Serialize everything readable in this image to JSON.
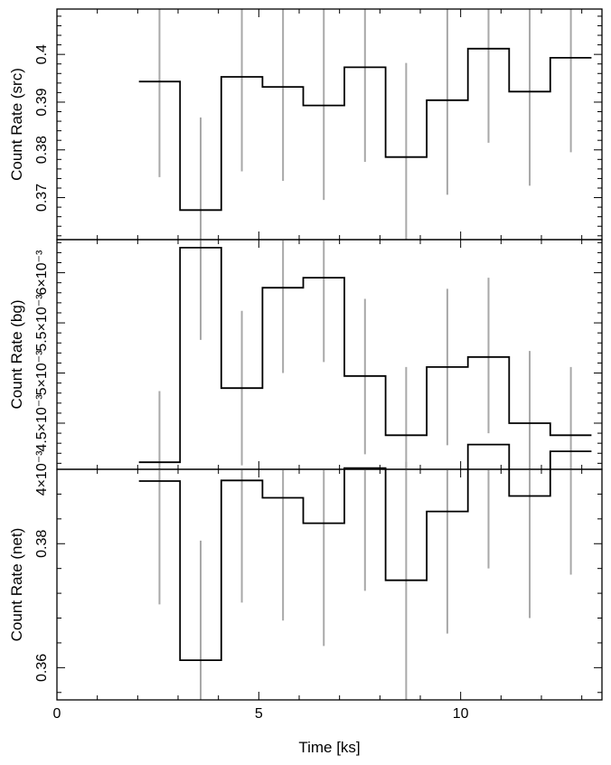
{
  "chart_data": [
    {
      "type": "line",
      "panel": "src",
      "ylabel": "Count Rate (src)",
      "ylim": [
        0.3612,
        0.4095
      ],
      "yticks_major": [
        0.37,
        0.38,
        0.39,
        0.4
      ],
      "ytick_labels": [
        "0.37",
        "0.38",
        "0.39",
        "0.4"
      ],
      "x_bin_edges": [
        2.03,
        3.05,
        4.07,
        5.09,
        6.1,
        7.12,
        8.14,
        9.16,
        10.18,
        11.2,
        12.22,
        13.24
      ],
      "x_centers": [
        2.54,
        3.56,
        4.58,
        5.6,
        6.61,
        7.63,
        8.65,
        9.67,
        10.69,
        11.71,
        12.73
      ],
      "values": [
        0.3943,
        0.3674,
        0.3953,
        0.3932,
        0.3893,
        0.3973,
        0.3785,
        0.3904,
        0.4012,
        0.3922,
        0.3993
      ],
      "err_low": [
        0.3743,
        0.3487,
        0.3755,
        0.3735,
        0.3695,
        0.3775,
        0.3612,
        0.3706,
        0.3815,
        0.3725,
        0.3795
      ],
      "err_high": [
        0.4095,
        0.3868,
        0.4095,
        0.4095,
        0.4095,
        0.4095,
        0.3982,
        0.4095,
        0.4095,
        0.4095,
        0.4095
      ]
    },
    {
      "type": "line",
      "panel": "bg",
      "ylabel": "Count Rate (bg)",
      "ylim": [
        4.04,
        6.33
      ],
      "yticks_major": [
        4.0,
        4.5,
        5.0,
        5.5,
        6.0
      ],
      "ytick_labels": [
        "4×10⁻³",
        "4.5×10⁻³",
        "5×10⁻³",
        "5.5×10⁻³",
        "6×10⁻³"
      ],
      "y_unit_multiplier": "×10⁻³",
      "x_bin_edges": [
        2.03,
        3.05,
        4.07,
        5.09,
        6.1,
        7.12,
        8.14,
        9.16,
        10.18,
        11.2,
        12.22,
        13.24
      ],
      "x_centers": [
        2.54,
        3.56,
        4.58,
        5.6,
        6.61,
        7.63,
        8.65,
        9.67,
        10.69,
        11.71,
        12.73
      ],
      "values": [
        4.11,
        6.25,
        4.85,
        5.85,
        5.95,
        4.97,
        4.38,
        5.06,
        5.16,
        4.5,
        4.38
      ],
      "err_low": [
        4.04,
        5.33,
        4.08,
        5.0,
        5.11,
        4.19,
        4.04,
        4.28,
        4.4,
        4.04,
        4.04
      ],
      "err_high": [
        4.82,
        6.33,
        5.62,
        6.33,
        6.33,
        5.74,
        5.06,
        5.84,
        5.95,
        5.22,
        5.06
      ]
    },
    {
      "type": "line",
      "panel": "net",
      "ylabel": "Count Rate (net)",
      "xlabel": "Time [ks]",
      "ylim": [
        0.3548,
        0.392
      ],
      "yticks_major": [
        0.36,
        0.38
      ],
      "ytick_labels": [
        "0.36",
        "0.38"
      ],
      "xlim": [
        0,
        13.5
      ],
      "xticks_major": [
        0,
        5,
        10
      ],
      "xtick_labels": [
        "0",
        "5",
        "10"
      ],
      "x_bin_edges": [
        2.03,
        3.05,
        4.07,
        5.09,
        6.1,
        7.12,
        8.14,
        9.16,
        10.18,
        11.2,
        12.22,
        13.24
      ],
      "x_centers": [
        2.54,
        3.56,
        4.58,
        5.6,
        6.61,
        7.63,
        8.65,
        9.67,
        10.69,
        11.71,
        12.73
      ],
      "values": [
        0.3901,
        0.3612,
        0.3902,
        0.3874,
        0.3833,
        0.3922,
        0.3741,
        0.3852,
        0.396,
        0.3877,
        0.3949
      ],
      "err_low": [
        0.3702,
        0.3548,
        0.3705,
        0.3676,
        0.3635,
        0.3724,
        0.3548,
        0.3655,
        0.376,
        0.368,
        0.375
      ],
      "err_high": [
        0.392,
        0.3805,
        0.392,
        0.392,
        0.392,
        0.392,
        0.3932,
        0.392,
        0.392,
        0.392,
        0.392
      ]
    }
  ],
  "colors": {
    "step": "#000000",
    "errbar": "#a8a8a8",
    "frame": "#000000"
  }
}
